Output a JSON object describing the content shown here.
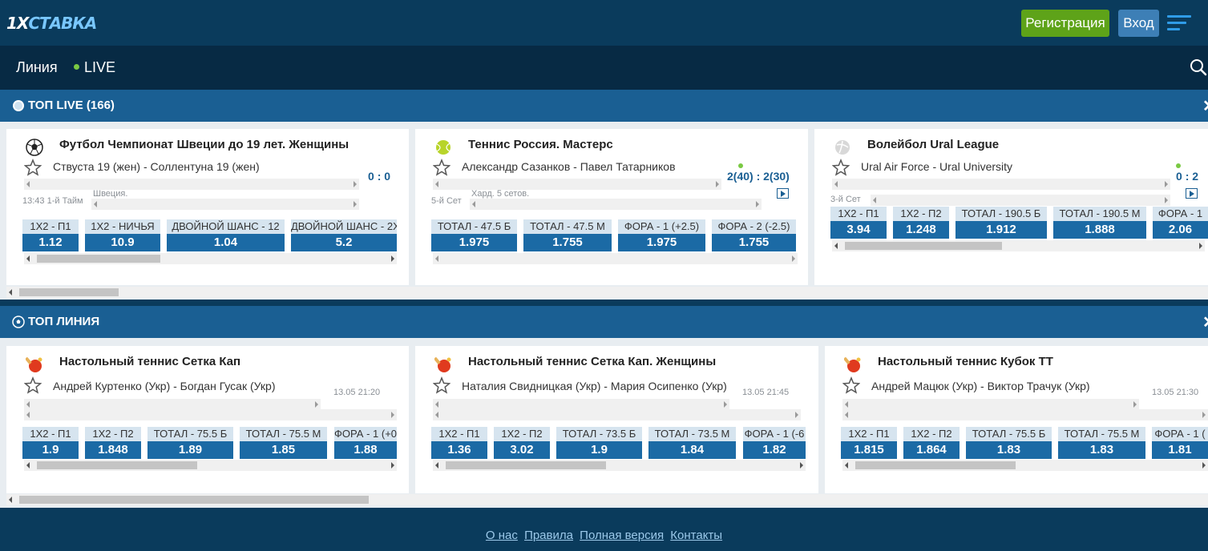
{
  "header": {
    "logo": {
      "part1": "1X",
      "part2": "СТАВКА"
    },
    "register_label": "Регистрация",
    "login_label": "Вход"
  },
  "nav": {
    "line_label": "Линия",
    "live_label": "LIVE"
  },
  "top_live": {
    "title": "ТОП LIVE (166)",
    "events": [
      {
        "sport_icon": "football-icon",
        "league": "Футбол Чемпионат Швеции до 19 лет. Женщины",
        "teams": "Ствуста 19 (жен) - Соллентуна 19 (жен)",
        "score_home": "0",
        "score_sep": ":",
        "score_away": "0",
        "meta": "13:43 1-й Тайм",
        "meta2": "Швеция.",
        "bets": [
          {
            "label": "1X2 - П1",
            "value": "1.12"
          },
          {
            "label": "1X2 - НИЧЬЯ",
            "value": "10.9"
          },
          {
            "label": "ДВОЙНОЙ ШАНС - 12",
            "value": "1.04"
          },
          {
            "label": "ДВОЙНОЙ ШАНС - 2X",
            "value": "5.2"
          }
        ]
      },
      {
        "sport_icon": "tennis-ball-icon",
        "league": "Теннис Россия. Мастерс",
        "teams": "Александр Сазанков - Павел Татарников",
        "score_home": "2(40)",
        "score_sep": ":",
        "score_away": "2(30)",
        "meta": "5-й Сет",
        "meta2": "Хард. 5 сетов.",
        "bets": [
          {
            "label": "ТОТАЛ - 47.5 Б",
            "value": "1.975"
          },
          {
            "label": "ТОТАЛ - 47.5 М",
            "value": "1.755"
          },
          {
            "label": "ФОРА - 1 (+2.5)",
            "value": "1.975"
          },
          {
            "label": "ФОРА - 2 (-2.5)",
            "value": "1.755"
          }
        ]
      },
      {
        "sport_icon": "volleyball-icon",
        "league": "Волейбол Ural League",
        "teams": "Ural Air Force - Ural University",
        "score_home": "0",
        "score_sep": ":",
        "score_away": "2",
        "meta": "3-й Сет",
        "meta2": "",
        "bets": [
          {
            "label": "1X2 - П1",
            "value": "3.94"
          },
          {
            "label": "1X2 - П2",
            "value": "1.248"
          },
          {
            "label": "ТОТАЛ - 190.5 Б",
            "value": "1.912"
          },
          {
            "label": "ТОТАЛ - 190.5 М",
            "value": "1.888"
          },
          {
            "label": "ФОРА - 1",
            "value": "2.06"
          }
        ]
      }
    ]
  },
  "top_line": {
    "title": "ТОП ЛИНИЯ",
    "events": [
      {
        "sport_icon": "table-tennis-icon",
        "league": "Настольный теннис Сетка Кап",
        "teams": "Андрей Куртенко (Укр) - Богдан Гусак (Укр)",
        "date": "13.05 21:20",
        "bets": [
          {
            "label": "1X2 - П1",
            "value": "1.9"
          },
          {
            "label": "1X2 - П2",
            "value": "1.848"
          },
          {
            "label": "ТОТАЛ - 75.5 Б",
            "value": "1.89"
          },
          {
            "label": "ТОТАЛ - 75.5 М",
            "value": "1.85"
          },
          {
            "label": "ФОРА - 1 (+0",
            "value": "1.88"
          }
        ]
      },
      {
        "sport_icon": "table-tennis-icon",
        "league": "Настольный теннис Сетка Кап. Женщины",
        "teams": "Наталия Свидницкая (Укр) - Мария Осипенко (Укр)",
        "date": "13.05 21:45",
        "bets": [
          {
            "label": "1X2 - П1",
            "value": "1.36"
          },
          {
            "label": "1X2 - П2",
            "value": "3.02"
          },
          {
            "label": "ТОТАЛ - 73.5 Б",
            "value": "1.9"
          },
          {
            "label": "ТОТАЛ - 73.5 М",
            "value": "1.84"
          },
          {
            "label": "ФОРА - 1 (-6",
            "value": "1.82"
          }
        ]
      },
      {
        "sport_icon": "table-tennis-icon",
        "league": "Настольный теннис Кубок ТТ",
        "teams": "Андрей Мацюк (Укр) - Виктор Трачук (Укр)",
        "date": "13.05 21:30",
        "bets": [
          {
            "label": "1X2 - П1",
            "value": "1.815"
          },
          {
            "label": "1X2 - П2",
            "value": "1.864"
          },
          {
            "label": "ТОТАЛ - 75.5 Б",
            "value": "1.83"
          },
          {
            "label": "ТОТАЛ - 75.5 М",
            "value": "1.83"
          },
          {
            "label": "ФОРА - 1 (",
            "value": "1.81"
          }
        ]
      }
    ]
  },
  "footer": {
    "links": [
      "О нас",
      "Правила",
      "Полная версия",
      "Контакты"
    ]
  },
  "colors": {
    "brand_dark": "#0a3b5c",
    "nav": "#072a44",
    "section": "#1a5f93",
    "odds": "#1b6aa5",
    "register": "#5ea319",
    "login": "#3d7fb6",
    "live_dot": "#7ac943"
  }
}
